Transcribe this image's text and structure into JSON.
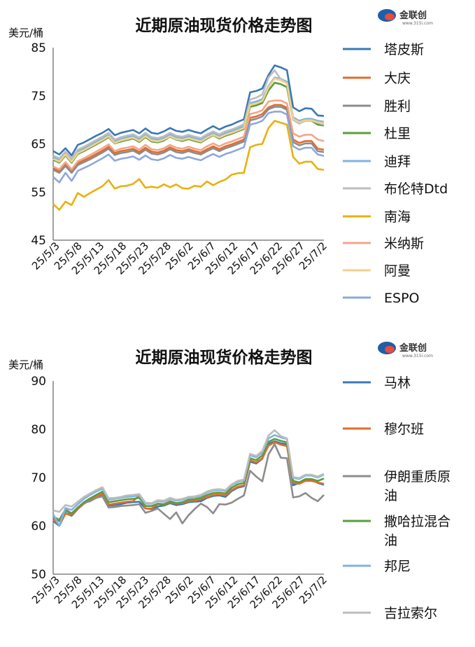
{
  "logo": {
    "text": "金联创",
    "sub": "www.315i.com"
  },
  "chart_data": [
    {
      "type": "line",
      "title": "近期原油现货价格走势图",
      "ylabel": "美元/桶",
      "ylim": [
        45,
        85
      ],
      "yticks": [
        45,
        55,
        65,
        75,
        85
      ],
      "x_tick_labels": [
        "25/5/3",
        "25/5/8",
        "25/5/13",
        "25/5/18",
        "25/5/23",
        "25/5/28",
        "25/6/2",
        "25/6/7",
        "25/6/12",
        "25/6/17",
        "25/6/22",
        "25/6/27",
        "25/7/2"
      ],
      "n_points": 45,
      "series": [
        {
          "name": "塔皮斯",
          "color": "#3A78B4",
          "values": [
            63.5,
            62.8,
            64.1,
            62.6,
            64.8,
            65.3,
            66.0,
            66.7,
            67.3,
            68.1,
            66.8,
            67.3,
            67.6,
            67.9,
            67.2,
            68.2,
            67.3,
            67.1,
            67.6,
            68.3,
            67.7,
            67.5,
            67.9,
            67.5,
            67.2,
            68.0,
            68.7,
            68.0,
            68.6,
            69.0,
            69.6,
            70.1,
            75.7,
            76.0,
            76.5,
            79.3,
            81.3,
            80.9,
            80.3,
            72.6,
            71.8,
            72.4,
            72.3,
            70.9,
            70.8
          ]
        },
        {
          "name": "大庆",
          "color": "#E36C2C",
          "values": [
            60.0,
            59.4,
            60.9,
            59.4,
            61.0,
            61.6,
            62.2,
            62.9,
            63.6,
            64.4,
            63.1,
            63.5,
            63.7,
            64.0,
            63.3,
            64.2,
            63.4,
            63.2,
            63.6,
            64.3,
            63.7,
            63.5,
            63.9,
            63.5,
            63.2,
            63.9,
            64.5,
            63.9,
            64.5,
            64.9,
            65.4,
            65.9,
            70.4,
            70.7,
            71.2,
            72.6,
            73.1,
            73.1,
            72.5,
            65.9,
            65.2,
            65.6,
            65.6,
            64.0,
            63.8
          ]
        },
        {
          "name": "胜利",
          "color": "#8C8C8C",
          "values": [
            59.6,
            59.0,
            60.4,
            59.0,
            60.6,
            61.2,
            61.8,
            62.5,
            63.2,
            64.0,
            62.7,
            63.1,
            63.3,
            63.6,
            62.9,
            63.8,
            63.0,
            62.8,
            63.2,
            63.9,
            63.3,
            63.1,
            63.5,
            63.1,
            62.8,
            63.5,
            64.1,
            63.5,
            64.1,
            64.5,
            65.0,
            65.5,
            69.9,
            70.2,
            70.7,
            72.2,
            72.7,
            72.7,
            72.1,
            65.4,
            64.7,
            65.1,
            65.1,
            63.5,
            63.3
          ]
        },
        {
          "name": "杜里",
          "color": "#5A9E3A",
          "values": [
            61.7,
            61.1,
            62.6,
            61.1,
            62.9,
            63.5,
            64.2,
            64.9,
            65.6,
            66.4,
            65.1,
            65.5,
            65.8,
            66.1,
            65.4,
            66.4,
            65.5,
            65.3,
            65.7,
            66.5,
            65.9,
            65.6,
            66.0,
            65.6,
            65.3,
            66.1,
            66.8,
            66.1,
            66.7,
            67.1,
            67.6,
            68.1,
            72.7,
            73.0,
            73.5,
            76.1,
            77.7,
            77.4,
            76.8,
            70.0,
            69.3,
            69.8,
            69.8,
            69.0,
            68.8
          ]
        },
        {
          "name": "迪拜",
          "color": "#7FB3E3",
          "values": [
            62.3,
            61.7,
            63.2,
            61.7,
            63.5,
            64.1,
            64.8,
            65.5,
            66.2,
            67.0,
            65.6,
            66.1,
            66.4,
            66.7,
            66.0,
            67.0,
            66.1,
            65.9,
            66.3,
            67.0,
            66.4,
            66.2,
            66.6,
            66.2,
            65.9,
            66.7,
            67.3,
            66.7,
            67.3,
            67.7,
            68.2,
            68.7,
            73.5,
            73.8,
            74.3,
            77.0,
            78.8,
            78.5,
            77.9,
            70.5,
            69.8,
            70.2,
            70.2,
            69.8,
            69.6
          ]
        },
        {
          "name": "布伦特Dtd",
          "color": "#BDBDBD",
          "values": [
            62.6,
            62.0,
            63.4,
            62.0,
            63.8,
            64.4,
            65.1,
            65.8,
            66.5,
            67.3,
            65.9,
            66.4,
            66.7,
            67.0,
            66.3,
            67.3,
            66.4,
            66.2,
            66.6,
            67.3,
            66.7,
            66.5,
            66.9,
            66.5,
            66.2,
            67.0,
            67.6,
            67.0,
            67.6,
            68.0,
            68.5,
            69.1,
            74.2,
            74.6,
            75.3,
            78.8,
            80.3,
            78.4,
            77.6,
            70.0,
            69.2,
            69.8,
            69.8,
            69.4,
            69.0
          ]
        },
        {
          "name": "南海",
          "color": "#E8B10F",
          "values": [
            52.5,
            51.3,
            53.0,
            52.3,
            54.8,
            54.0,
            54.8,
            55.5,
            56.2,
            57.5,
            55.7,
            56.2,
            56.3,
            56.7,
            57.7,
            55.9,
            56.1,
            55.9,
            56.6,
            56.0,
            56.6,
            55.8,
            55.7,
            56.3,
            56.1,
            57.2,
            56.4,
            57.1,
            57.6,
            58.6,
            58.9,
            59.0,
            64.3,
            64.8,
            65.0,
            68.3,
            69.8,
            69.4,
            69.0,
            62.3,
            60.9,
            61.3,
            61.3,
            59.8,
            59.6
          ]
        },
        {
          "name": "米纳斯",
          "color": "#F2A688",
          "values": [
            60.3,
            59.7,
            61.2,
            59.7,
            61.4,
            62.0,
            62.7,
            63.4,
            64.1,
            64.9,
            63.5,
            64.0,
            64.2,
            64.5,
            63.8,
            64.8,
            63.9,
            63.7,
            64.1,
            64.8,
            64.2,
            64.0,
            64.4,
            64.0,
            63.7,
            64.5,
            65.1,
            64.5,
            65.1,
            65.5,
            66.0,
            66.5,
            71.2,
            71.5,
            72.0,
            73.8,
            74.0,
            74.0,
            73.4,
            67.2,
            66.5,
            66.9,
            66.9,
            65.9,
            65.6
          ]
        },
        {
          "name": "阿曼",
          "color": "#F5D089",
          "values": [
            61.9,
            61.3,
            62.8,
            61.3,
            63.1,
            63.7,
            64.4,
            65.1,
            65.8,
            66.6,
            65.2,
            65.7,
            66.0,
            66.3,
            65.6,
            66.6,
            65.7,
            65.5,
            65.9,
            66.6,
            66.0,
            65.8,
            66.2,
            65.8,
            65.5,
            66.3,
            66.9,
            66.3,
            66.9,
            67.3,
            67.8,
            68.3,
            73.1,
            73.4,
            73.9,
            76.7,
            78.6,
            78.2,
            77.6,
            70.2,
            69.5,
            69.9,
            69.9,
            69.5,
            69.3
          ]
        },
        {
          "name": "ESPO",
          "color": "#8EA8DC",
          "values": [
            58.1,
            57.0,
            59.0,
            57.3,
            59.4,
            60.0,
            60.6,
            61.3,
            62.0,
            62.8,
            61.5,
            61.9,
            62.1,
            62.4,
            61.7,
            62.6,
            61.8,
            61.6,
            62.0,
            62.7,
            62.1,
            61.9,
            62.3,
            61.9,
            61.6,
            62.3,
            62.9,
            62.3,
            62.9,
            63.3,
            63.8,
            64.3,
            69.0,
            69.3,
            69.8,
            71.4,
            71.7,
            71.7,
            71.1,
            64.5,
            63.8,
            64.2,
            64.2,
            62.8,
            62.5
          ]
        }
      ]
    },
    {
      "type": "line",
      "title": "近期原油现货价格走势图",
      "ylabel": "美元/桶",
      "ylim": [
        50,
        90
      ],
      "yticks": [
        50,
        60,
        70,
        80,
        90
      ],
      "x_tick_labels": [
        "25/5/3",
        "25/5/8",
        "25/5/13",
        "25/5/18",
        "25/5/23",
        "25/5/28",
        "25/6/2",
        "25/6/7",
        "25/6/12",
        "25/6/17",
        "25/6/22",
        "25/6/27",
        "25/7/2"
      ],
      "n_points": 45,
      "series": [
        {
          "name": "马林",
          "color": "#3A78B4",
          "values": [
            61.0,
            60.0,
            62.6,
            62.1,
            63.5,
            64.6,
            65.3,
            66.0,
            66.5,
            64.2,
            64.3,
            64.5,
            64.8,
            64.9,
            65.0,
            63.6,
            63.5,
            64.0,
            64.2,
            64.7,
            64.3,
            64.5,
            64.9,
            65.0,
            65.1,
            65.8,
            66.2,
            66.3,
            66.0,
            67.2,
            67.9,
            68.2,
            73.3,
            72.9,
            73.9,
            77.0,
            77.5,
            77.1,
            76.9,
            68.4,
            68.9,
            69.5,
            69.6,
            68.9,
            68.5
          ]
        },
        {
          "name": "穆尔班",
          "color": "#E36C2C",
          "values": [
            61.3,
            60.2,
            62.5,
            62.3,
            63.6,
            64.6,
            65.3,
            66.0,
            66.7,
            64.4,
            64.6,
            64.8,
            65.0,
            65.1,
            66.3,
            63.6,
            63.6,
            64.5,
            64.4,
            64.9,
            64.6,
            64.7,
            65.1,
            65.2,
            65.5,
            66.0,
            66.4,
            66.5,
            66.3,
            67.4,
            68.1,
            68.4,
            73.6,
            73.1,
            74.0,
            76.6,
            77.3,
            76.8,
            76.5,
            68.9,
            68.7,
            69.3,
            69.3,
            69.0,
            68.7
          ]
        },
        {
          "name": "伊朗重质原油",
          "color": "#8C8C8C",
          "values": [
            61.9,
            61.3,
            63.4,
            62.6,
            63.8,
            64.8,
            65.1,
            65.8,
            66.1,
            63.8,
            63.9,
            64.1,
            64.2,
            64.3,
            64.5,
            62.7,
            63.1,
            63.6,
            62.5,
            61.4,
            62.8,
            60.5,
            62.2,
            63.5,
            64.6,
            63.9,
            62.6,
            64.5,
            64.4,
            64.8,
            65.6,
            66.3,
            71.4,
            70.2,
            69.2,
            74.8,
            76.9,
            74.1,
            74.0,
            65.9,
            66.1,
            66.8,
            65.8,
            65.1,
            66.4
          ]
        },
        {
          "name": "撒哈拉混合油",
          "color": "#5A9E3A",
          "values": [
            61.7,
            61.0,
            63.1,
            62.5,
            63.8,
            64.9,
            65.7,
            66.4,
            67.1,
            64.9,
            65.1,
            65.3,
            65.5,
            65.6,
            65.8,
            64.1,
            64.1,
            64.6,
            64.5,
            65.1,
            64.7,
            64.9,
            65.4,
            65.5,
            65.8,
            66.4,
            66.8,
            66.9,
            66.7,
            67.9,
            68.6,
            68.9,
            74.0,
            73.6,
            74.6,
            77.4,
            78.0,
            77.6,
            77.3,
            69.3,
            69.0,
            69.7,
            69.7,
            69.3,
            69.8
          ]
        },
        {
          "name": "邦尼",
          "color": "#7FB3E3",
          "values": [
            62.4,
            60.0,
            63.7,
            63.3,
            64.5,
            65.6,
            66.4,
            67.1,
            67.7,
            65.4,
            65.6,
            65.8,
            66.0,
            66.1,
            66.3,
            64.6,
            64.6,
            65.1,
            65.0,
            65.6,
            65.2,
            65.4,
            65.8,
            65.9,
            66.2,
            66.9,
            67.3,
            67.4,
            67.2,
            68.4,
            69.1,
            69.4,
            74.6,
            74.2,
            75.2,
            78.1,
            78.8,
            78.3,
            78.0,
            69.9,
            69.7,
            70.4,
            70.4,
            70.0,
            70.6
          ]
        },
        {
          "name": "吉拉索尔",
          "color": "#BDBDBD",
          "values": [
            63.2,
            62.9,
            64.3,
            64.0,
            65.0,
            66.0,
            66.7,
            67.4,
            68.0,
            65.7,
            65.8,
            66.0,
            66.3,
            66.4,
            66.6,
            64.8,
            64.7,
            65.3,
            65.2,
            65.8,
            65.4,
            65.6,
            66.0,
            66.1,
            66.4,
            67.1,
            67.5,
            67.6,
            67.4,
            68.6,
            69.3,
            69.6,
            74.9,
            74.5,
            75.5,
            78.7,
            79.8,
            78.6,
            78.1,
            70.1,
            69.9,
            70.6,
            70.6,
            70.2,
            70.8
          ]
        }
      ]
    }
  ]
}
